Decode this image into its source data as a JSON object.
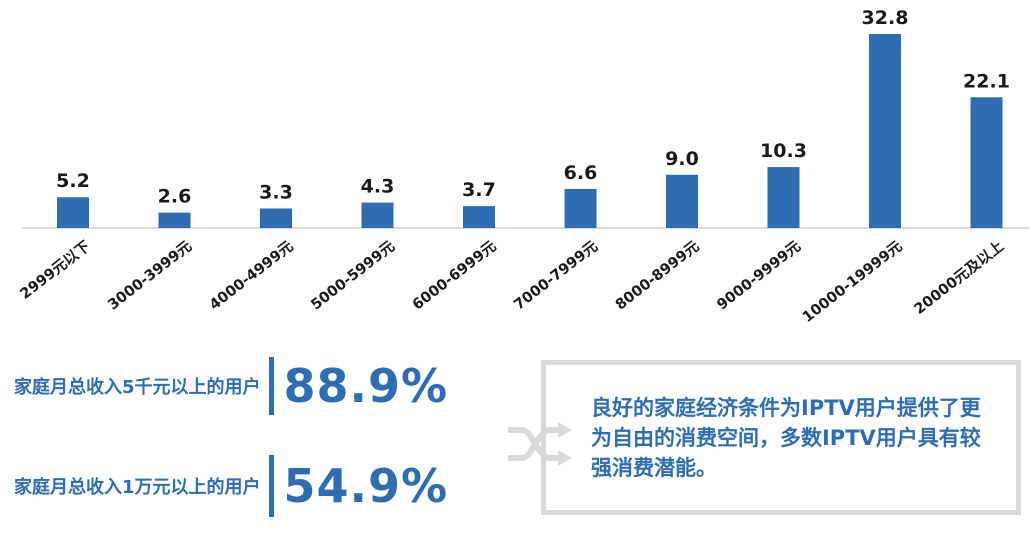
{
  "chart_data": {
    "type": "bar",
    "categories": [
      "2999元以下",
      "3000-3999元",
      "4000-4999元",
      "5000-5999元",
      "6000-6999元",
      "7000-7999元",
      "8000-8999元",
      "9000-9999元",
      "10000-19999元",
      "20000元及以上"
    ],
    "values": [
      5.2,
      2.6,
      3.3,
      4.3,
      3.7,
      6.6,
      9.0,
      10.3,
      32.8,
      22.1
    ],
    "value_labels": [
      "5.2",
      "2.6",
      "3.3",
      "4.3",
      "3.7",
      "6.6",
      "9.0",
      "10.3",
      "32.8",
      "22.1"
    ],
    "ylim": [
      0,
      32.8
    ],
    "grid": false,
    "bar_color": "#2e6db4"
  },
  "stats": [
    {
      "label": "家庭月总收入5千元以上的用户",
      "value": "88.9%"
    },
    {
      "label": "家庭月总收入1万元以上的用户",
      "value": "54.9%"
    }
  ],
  "note": "良好的家庭经济条件为IPTV用户提供了更为自由的消费空间，多数IPTV用户具有较强消费潜能。",
  "icons": {
    "connector": "shuffle-arrows-icon"
  },
  "colors": {
    "accent": "#2e6db4",
    "box_border": "#d9d9d9"
  }
}
